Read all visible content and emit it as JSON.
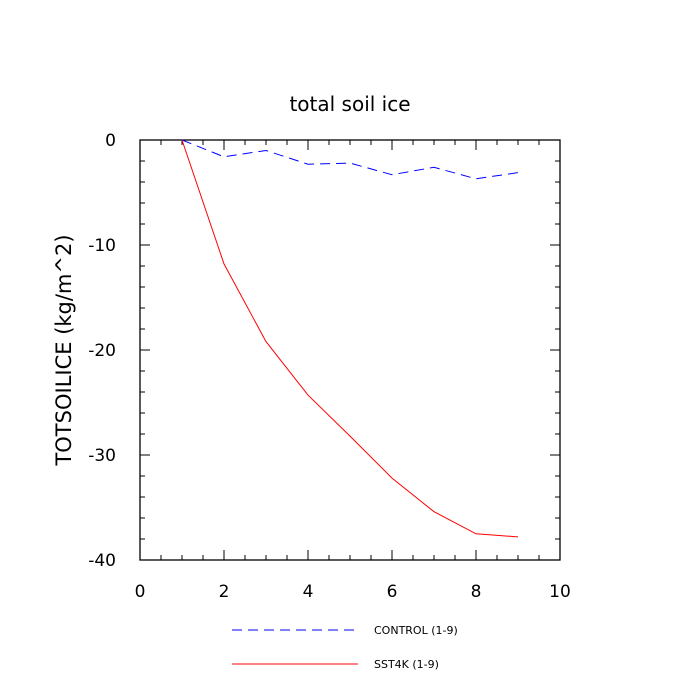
{
  "chart_data": {
    "type": "line",
    "title": "total soil ice",
    "xlabel": "",
    "ylabel": "TOTSOILICE  (kg/m^2)",
    "xlim": [
      0,
      10
    ],
    "ylim": [
      -40,
      0
    ],
    "xticks": [
      0,
      2,
      4,
      6,
      8,
      10
    ],
    "yticks": [
      0,
      -10,
      -20,
      -30,
      -40
    ],
    "xtick_labels": [
      "0",
      "2",
      "4",
      "6",
      "8",
      "10"
    ],
    "ytick_labels": [
      "0",
      "-10",
      "-20",
      "-30",
      "-40"
    ],
    "grid": false,
    "legend_position": "bottom",
    "series": [
      {
        "name": "CONTROL (1-9)",
        "color": "#0000ff",
        "dash": "dashed",
        "x": [
          1,
          2,
          3,
          4,
          5,
          6,
          7,
          8,
          9
        ],
        "values": [
          0,
          -1.6,
          -1.0,
          -2.3,
          -2.2,
          -3.3,
          -2.6,
          -3.7,
          -3.1
        ]
      },
      {
        "name": "SST4K (1-9)",
        "color": "#ff0000",
        "dash": "solid",
        "x": [
          1,
          2,
          3,
          4,
          5,
          6,
          7,
          8,
          9
        ],
        "values": [
          0,
          -11.8,
          -19.2,
          -24.3,
          -28.2,
          -32.2,
          -35.4,
          -37.5,
          -37.8
        ]
      }
    ]
  }
}
